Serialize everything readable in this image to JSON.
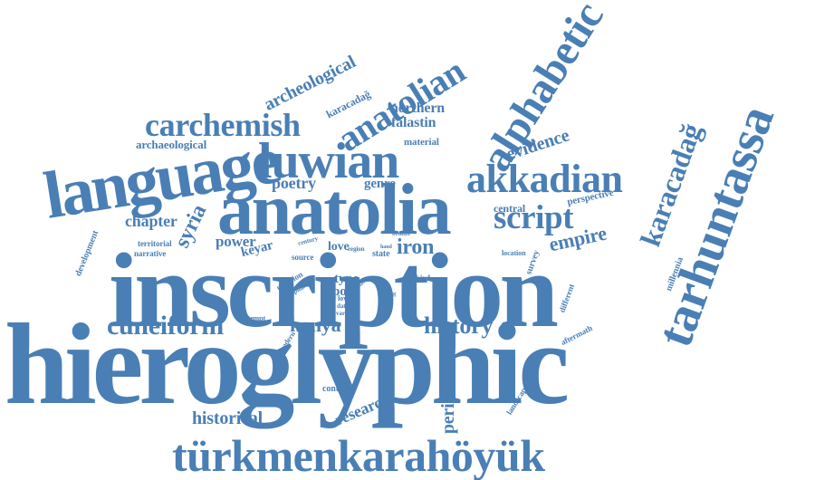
{
  "theme": {
    "word_color": "#4a7fb5",
    "background": "#ffffff"
  },
  "words": {
    "hieroglyphic": "hieroglyphic",
    "inscription": "inscription",
    "anatolia": "anatolia",
    "language": "language",
    "luwian": "luwian",
    "akkadian": "akkadian",
    "script": "script",
    "carchemish": "carchemish",
    "anatolian": "anatolian",
    "alphabetic": "alphabetic",
    "tarhuntassa": "tarhuntassa",
    "turkmenkarahoyuk": "türkmenkarahöyük",
    "cuneiform": "cuneiform",
    "history": "history",
    "konya": "konya",
    "historical": "historical",
    "research": "research",
    "period": "period",
    "karacadag_large": "karacadağ",
    "empire": "empire",
    "evidence": "evidence",
    "archeological": "archeological",
    "archaeological": "archaeological",
    "northern": "northern",
    "falastin": "falastin",
    "material": "material",
    "karacadag_small": "karacadağ",
    "poetry": "poetry",
    "genre": "genre",
    "chapter": "chapter",
    "syria": "syria",
    "power": "power",
    "keyar": "keyar",
    "love": "love",
    "iron": "iron",
    "central": "central",
    "perspective": "perspective",
    "territorial": "territorial",
    "narrative": "narrative",
    "development": "development",
    "type": "type",
    "post": "post",
    "source": "source",
    "state": "state",
    "region": "region",
    "third": "third",
    "location": "location",
    "survey": "survey",
    "millennia": "millennia",
    "different": "different",
    "aftermath": "aftermath",
    "question": "question",
    "capital": "capital",
    "century": "century",
    "attempt": "attempt",
    "lover": "lover",
    "dating": "dating",
    "various": "various",
    "bronze": "bronze",
    "phase": "phase",
    "king": "king",
    "hand": "hand",
    "modern": "modern",
    "context": "context",
    "landscape": "landscape"
  }
}
